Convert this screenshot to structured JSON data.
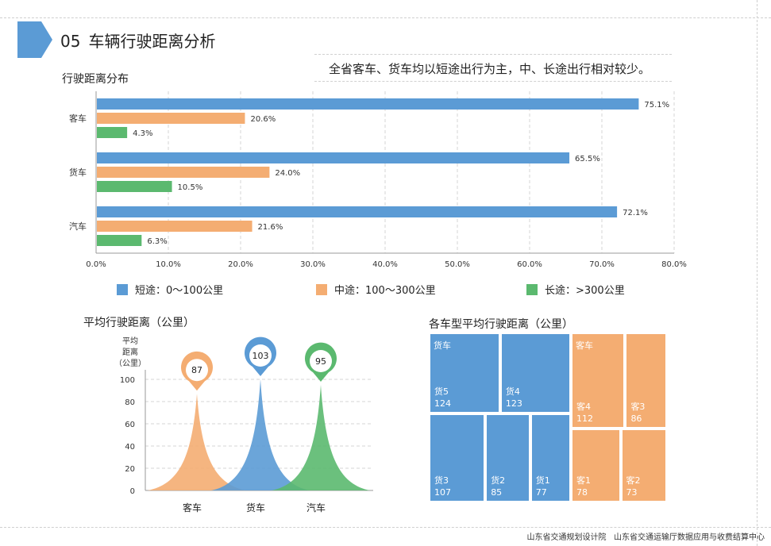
{
  "header": {
    "section_number": "05",
    "title": "车辆行驶距离分析",
    "summary": "全省客车、货车均以短途出行为主，中、长途出行相对较少。"
  },
  "colors": {
    "blue": "#5b9bd5",
    "orange": "#f4ad72",
    "green": "#5bb96f",
    "header_arrow": "#5b9bd5"
  },
  "bar_section_title": "行驶距离分布",
  "pin_section_title": "平均行驶距离（公里）",
  "treemap_section_title": "各车型平均行驶距离（公里）",
  "chart_data": [
    {
      "type": "bar",
      "orientation": "horizontal",
      "title": "行驶距离分布",
      "categories": [
        "客车",
        "货车",
        "汽车"
      ],
      "series": [
        {
          "name": "短途：0～100公里",
          "values": [
            75.1,
            65.5,
            72.1
          ],
          "color": "#5b9bd5"
        },
        {
          "name": "中途：100～300公里",
          "values": [
            20.6,
            24.0,
            21.6
          ],
          "color": "#f4ad72"
        },
        {
          "name": "长途：>300公里",
          "values": [
            4.3,
            10.5,
            6.3
          ],
          "color": "#5bb96f"
        }
      ],
      "value_labels": [
        [
          "75.1%",
          "65.5%",
          "72.1%"
        ],
        [
          "20.6%",
          "24.0%",
          "21.6%"
        ],
        [
          "4.3%",
          "10.5%",
          "6.3%"
        ]
      ],
      "xlim": [
        0,
        80
      ],
      "xticks": [
        "0.0%",
        "10.0%",
        "20.0%",
        "30.0%",
        "40.0%",
        "50.0%",
        "60.0%",
        "70.0%",
        "80.0%"
      ],
      "grid": true,
      "legend_position": "bottom"
    },
    {
      "type": "area",
      "style": "pictorial-peak",
      "title": "平均行驶距离（公里）",
      "ylabel_lines": [
        "平均",
        "距离",
        "（公里）"
      ],
      "categories": [
        "客车",
        "货车",
        "汽车"
      ],
      "values": [
        87,
        103,
        95
      ],
      "value_labels": [
        "87",
        "103",
        "95"
      ],
      "colors": [
        "#f4ad72",
        "#5b9bd5",
        "#5bb96f"
      ],
      "ylim": [
        0,
        100
      ],
      "yticks": [
        "0",
        "20",
        "40",
        "60",
        "80",
        "100"
      ],
      "grid": true
    },
    {
      "type": "treemap",
      "title": "各车型平均行驶距离（公里）",
      "groups": [
        {
          "name": "货车",
          "color": "#5b9bd5",
          "items": [
            {
              "name": "货5",
              "value": 124
            },
            {
              "name": "货4",
              "value": 123
            },
            {
              "name": "货3",
              "value": 107
            },
            {
              "name": "货2",
              "value": 85
            },
            {
              "name": "货1",
              "value": 77
            }
          ]
        },
        {
          "name": "客车",
          "color": "#f4ad72",
          "items": [
            {
              "name": "客4",
              "value": 112
            },
            {
              "name": "客3",
              "value": 86
            },
            {
              "name": "客1",
              "value": 78
            },
            {
              "name": "客2",
              "value": 73
            }
          ]
        }
      ]
    }
  ],
  "footer": {
    "org1": "山东省交通规划设计院",
    "org2": "山东省交通运输厅数据应用与收费结算中心"
  }
}
